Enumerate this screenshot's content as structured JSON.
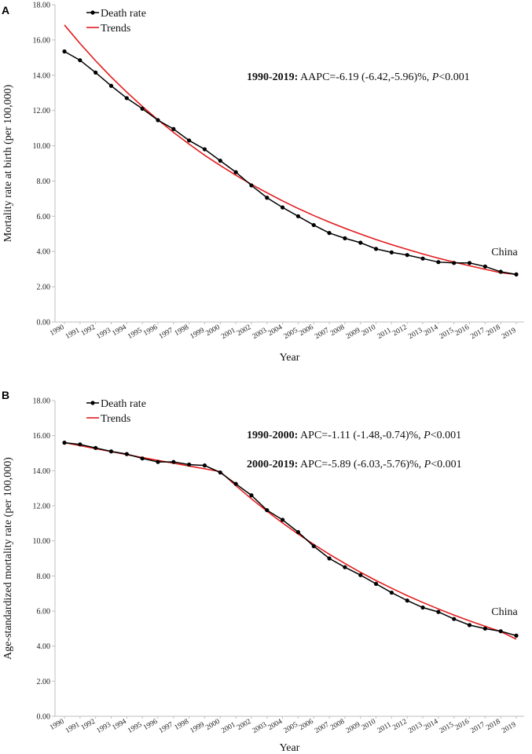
{
  "chart_data": [
    {
      "panel": "A",
      "type": "line",
      "region_label": "China",
      "xlabel": "Year",
      "ylabel": "Mortality rate at birth (per 100,000)",
      "ylim": [
        0,
        18
      ],
      "yticks": [
        "0.00",
        "2.00",
        "4.00",
        "6.00",
        "8.00",
        "10.00",
        "12.00",
        "14.00",
        "16.00",
        "18.00"
      ],
      "categories": [
        "1990",
        "1991",
        "1992",
        "1993",
        "1994",
        "1995",
        "1996",
        "1997",
        "1998",
        "1999",
        "2000",
        "2001",
        "2002",
        "2003",
        "2004",
        "2005",
        "2006",
        "2007",
        "2008",
        "2009",
        "2010",
        "2011",
        "2012",
        "2013",
        "2014",
        "2015",
        "2016",
        "2017",
        "2018",
        "2019"
      ],
      "legend": [
        "Death rate",
        "Trends"
      ],
      "series": [
        {
          "name": "Death rate",
          "color": "#000000",
          "values": [
            15.35,
            14.85,
            14.15,
            13.4,
            12.7,
            12.1,
            11.45,
            10.95,
            10.3,
            9.8,
            9.15,
            8.5,
            7.75,
            7.05,
            6.5,
            6.0,
            5.5,
            5.05,
            4.75,
            4.5,
            4.15,
            3.95,
            3.8,
            3.6,
            3.4,
            3.35,
            3.35,
            3.15,
            2.85,
            2.7
          ]
        },
        {
          "name": "Trends",
          "color": "#e31a1c",
          "values": [
            16.85,
            15.8,
            14.82,
            13.9,
            13.04,
            12.23,
            11.47,
            10.76,
            10.09,
            9.46,
            8.88,
            8.33,
            7.81,
            7.33,
            6.87,
            6.44,
            6.04,
            5.67,
            5.32,
            4.99,
            4.68,
            4.39,
            4.12,
            3.86,
            3.62,
            3.4,
            3.19,
            2.99,
            2.8,
            2.7
          ]
        }
      ],
      "annotations": [
        {
          "bold": "1990-2019:",
          "text": " AAPC=-6.19 (-6.42,-5.96)%, ",
          "italic": "P",
          "tail": "<0.001"
        }
      ]
    },
    {
      "panel": "B",
      "type": "line",
      "region_label": "China",
      "xlabel": "Year",
      "ylabel": "Age-standardized mortality rate (per 100,000)",
      "ylim": [
        0,
        18
      ],
      "yticks": [
        "0.00",
        "2.00",
        "4.00",
        "6.00",
        "8.00",
        "10.00",
        "12.00",
        "14.00",
        "16.00",
        "18.00"
      ],
      "categories": [
        "1990",
        "1991",
        "1992",
        "1993",
        "1994",
        "1995",
        "1996",
        "1997",
        "1998",
        "1999",
        "2000",
        "2001",
        "2002",
        "2003",
        "2004",
        "2005",
        "2006",
        "2007",
        "2008",
        "2009",
        "2010",
        "2011",
        "2012",
        "2013",
        "2014",
        "2015",
        "2016",
        "2017",
        "2018",
        "2019"
      ],
      "legend": [
        "Death rate",
        "Trends"
      ],
      "series": [
        {
          "name": "Death rate",
          "color": "#000000",
          "values": [
            15.6,
            15.5,
            15.3,
            15.1,
            14.95,
            14.7,
            14.5,
            14.5,
            14.35,
            14.3,
            13.9,
            13.25,
            12.6,
            11.75,
            11.2,
            10.5,
            9.7,
            9.0,
            8.5,
            8.05,
            7.55,
            7.05,
            6.6,
            6.2,
            5.95,
            5.55,
            5.2,
            5.0,
            4.85,
            4.6
          ]
        },
        {
          "name": "Trends",
          "color": "#e31a1c",
          "values": [
            15.6,
            15.43,
            15.26,
            15.09,
            14.92,
            14.75,
            14.59,
            14.43,
            14.27,
            14.11,
            13.95,
            13.15,
            12.4,
            11.69,
            11.02,
            10.39,
            9.8,
            9.24,
            8.71,
            8.21,
            7.74,
            7.3,
            6.88,
            6.49,
            6.12,
            5.77,
            5.44,
            5.13,
            4.83,
            4.4
          ]
        }
      ],
      "annotations": [
        {
          "bold": "1990-2000:",
          "text": " APC=-1.11 (-1.48,-0.74)%, ",
          "italic": "P",
          "tail": "<0.001"
        },
        {
          "bold": "2000-2019:",
          "text": " APC=-5.89 (-6.03,-5.76)%, ",
          "italic": "P",
          "tail": "<0.001"
        }
      ]
    }
  ]
}
